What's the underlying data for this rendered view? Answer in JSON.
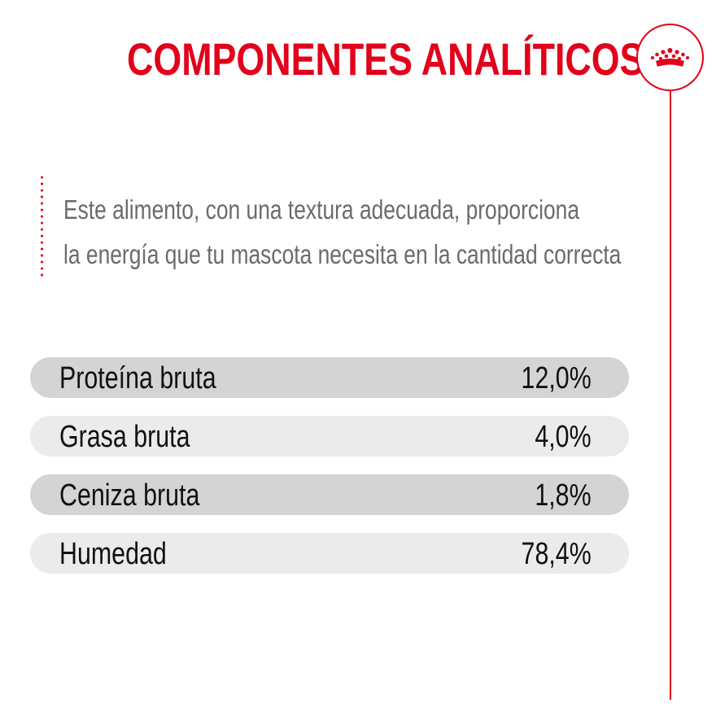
{
  "header": {
    "title": "COMPONENTES ANALÍTICOS",
    "brand_color": "#e2001a",
    "logo_icon": "crown-icon"
  },
  "description": {
    "line1": "Este alimento, con una textura adecuada, proporciona",
    "line2": "la energía que tu mascota necesita en la cantidad correcta"
  },
  "components": [
    {
      "label": "Proteína bruta",
      "value": "12,0%"
    },
    {
      "label": "Grasa bruta",
      "value": "4,0%"
    },
    {
      "label": "Ceniza bruta",
      "value": "1,8%"
    },
    {
      "label": "Humedad",
      "value": "78,4%"
    }
  ]
}
